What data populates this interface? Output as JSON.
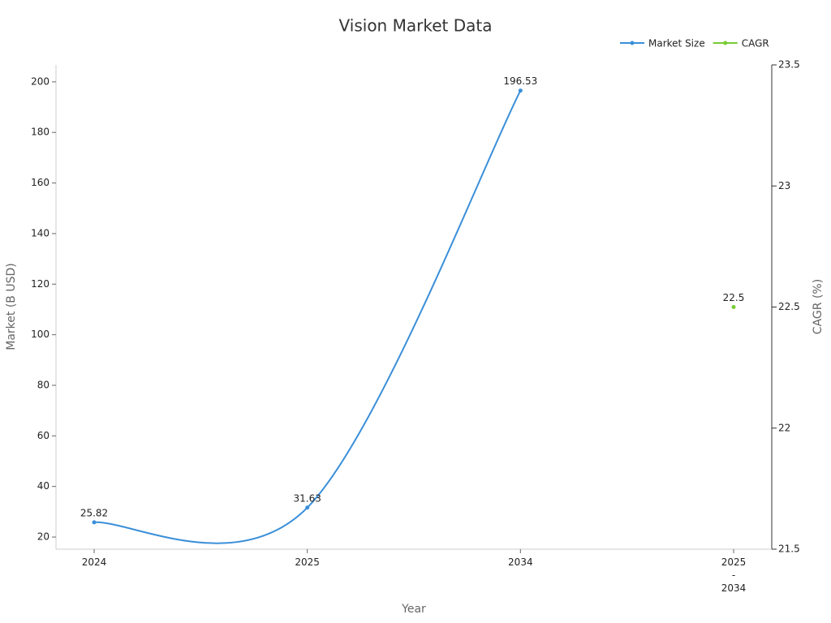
{
  "chart_data": {
    "type": "line",
    "title": "Vision Market Data",
    "categories": [
      "2024",
      "2025",
      "2034",
      "2025 - 2034"
    ],
    "series": [
      {
        "name": "Market Size",
        "color": "#3a8fd9",
        "values": [
          25.82,
          31.63,
          196.53,
          null
        ]
      },
      {
        "name": "CAGR",
        "color": "#77cc33",
        "axis": "y2",
        "values": [
          null,
          null,
          null,
          22.5
        ]
      }
    ],
    "xlabel": "Year",
    "ylabel": "Market (B USD)",
    "y2label": "CAGR (%)",
    "ylim": [
      15.2,
      206.7
    ],
    "yticks": [
      20,
      40,
      60,
      80,
      100,
      120,
      140,
      160,
      180,
      200
    ],
    "y2lim": [
      21.5,
      23.5
    ],
    "y2ticks": [
      21.5,
      22,
      22.5,
      23,
      23.5
    ],
    "legend": "top-right",
    "smooth": true
  }
}
